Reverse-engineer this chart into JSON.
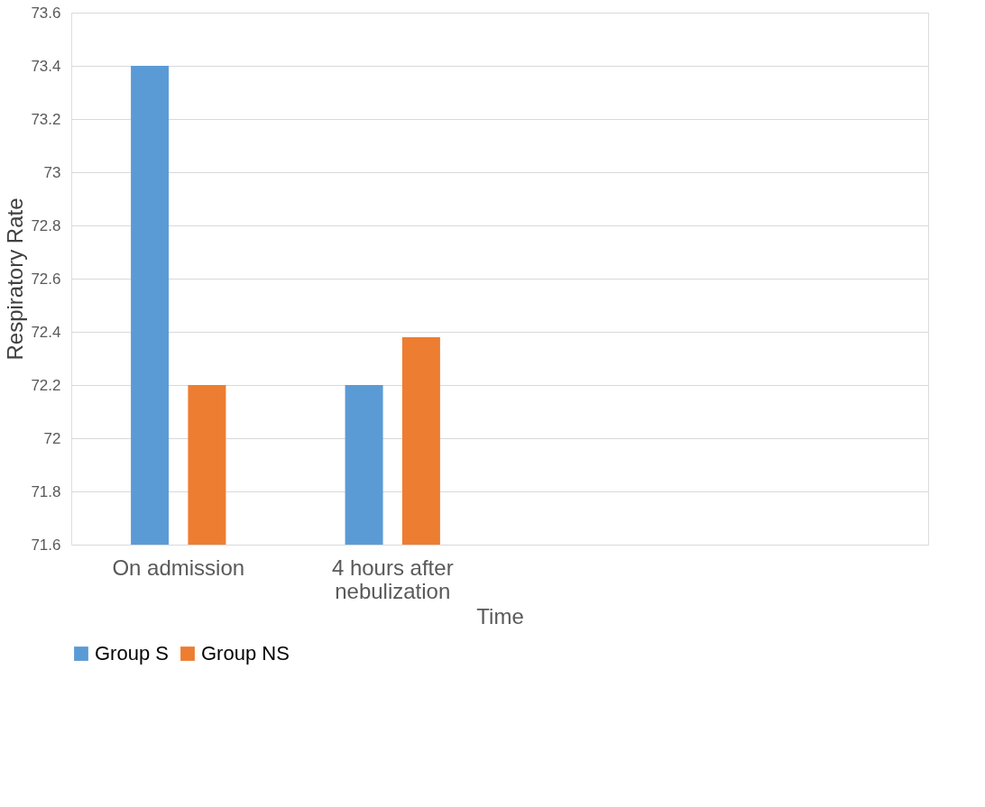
{
  "chart_data": {
    "type": "bar",
    "xlabel": "Time",
    "ylabel": "Respiratory Rate",
    "categories": [
      "On admission",
      "4 hours after nebulization",
      null,
      null
    ],
    "series": [
      {
        "name": "Group S",
        "color": "#5b9bd5",
        "values": [
          73.4,
          72.2,
          null,
          null
        ]
      },
      {
        "name": "Group NS",
        "color": "#ed7d31",
        "values": [
          72.2,
          72.38,
          null,
          null
        ]
      }
    ],
    "ylim": [
      71.6,
      73.6
    ],
    "yticks": [
      71.6,
      71.8,
      72,
      72.2,
      72.4,
      72.6,
      72.8,
      73,
      73.2,
      73.4,
      73.6
    ],
    "grid": "y",
    "legend": "bottom"
  }
}
